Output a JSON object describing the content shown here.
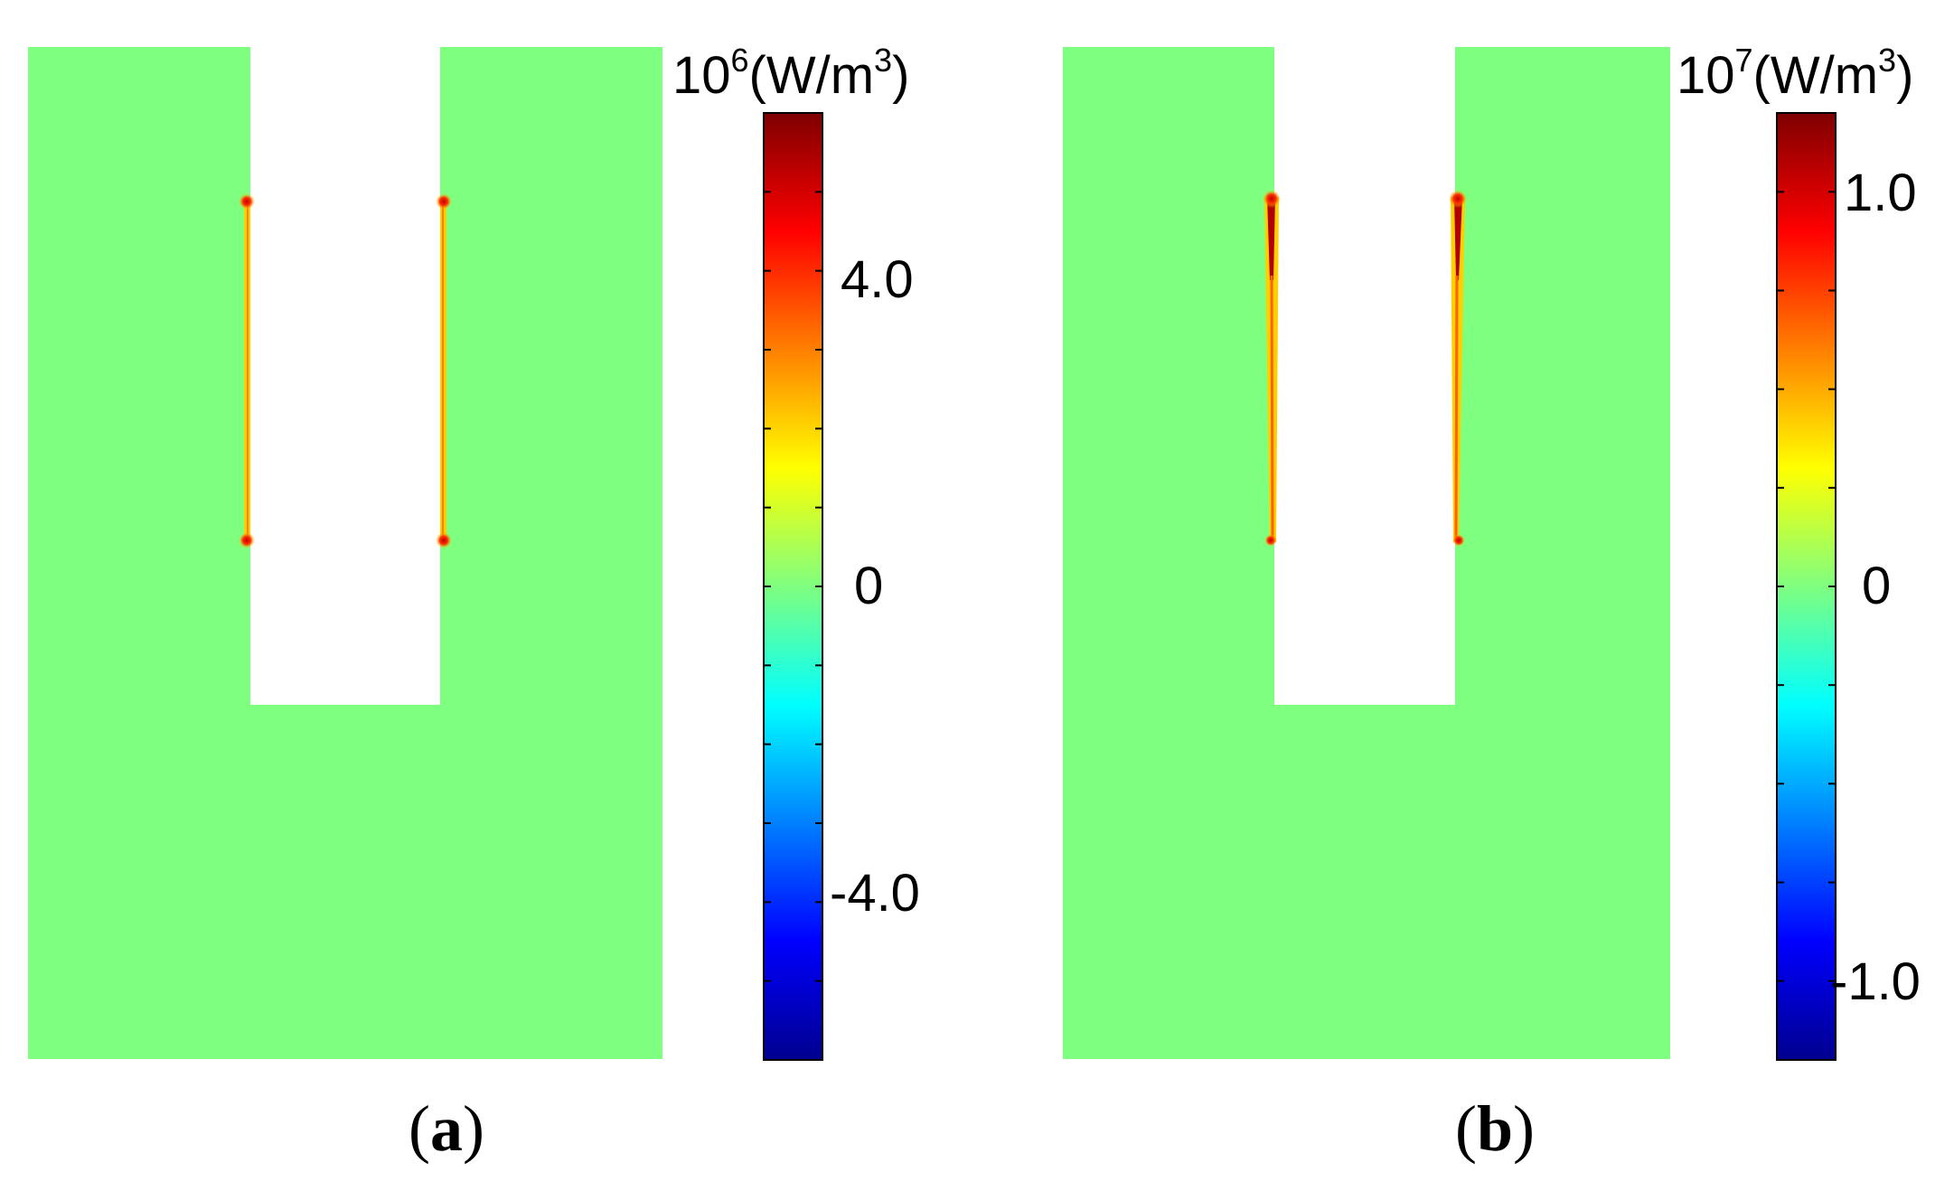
{
  "chart_data": [
    {
      "type": "heatmap",
      "panel_label": "a",
      "colorbar": {
        "unit_base": "10",
        "unit_exponent": "6",
        "unit_text": "(W/m",
        "unit_power": "3",
        "unit_close": ")",
        "range": [
          -6.0,
          6.0
        ],
        "ticks": [
          -4.0,
          0,
          4.0
        ],
        "tick_labels": [
          "-4.0",
          "0",
          "4.0"
        ],
        "colormap": "jet"
      },
      "field_value": 0,
      "hotspot_value": 6.0,
      "edge_value": 1.0
    },
    {
      "type": "heatmap",
      "panel_label": "b",
      "colorbar": {
        "unit_base": "10",
        "unit_exponent": "7",
        "unit_text": "(W/m",
        "unit_power": "3",
        "unit_close": ")",
        "range": [
          -1.2,
          1.2
        ],
        "ticks": [
          -1.0,
          0,
          1.0
        ],
        "tick_labels": [
          "-1.0",
          "0",
          "1.0"
        ],
        "colormap": "jet"
      },
      "field_value": 0,
      "hotspot_value": 1.2,
      "edge_value": 0.4
    }
  ],
  "colors": {
    "background": "#ffffff",
    "text": "#000000",
    "jet_stops": [
      "#00008f",
      "#0000ff",
      "#00ffff",
      "#7fff7f",
      "#ffff00",
      "#ff0000",
      "#7f0000"
    ]
  }
}
